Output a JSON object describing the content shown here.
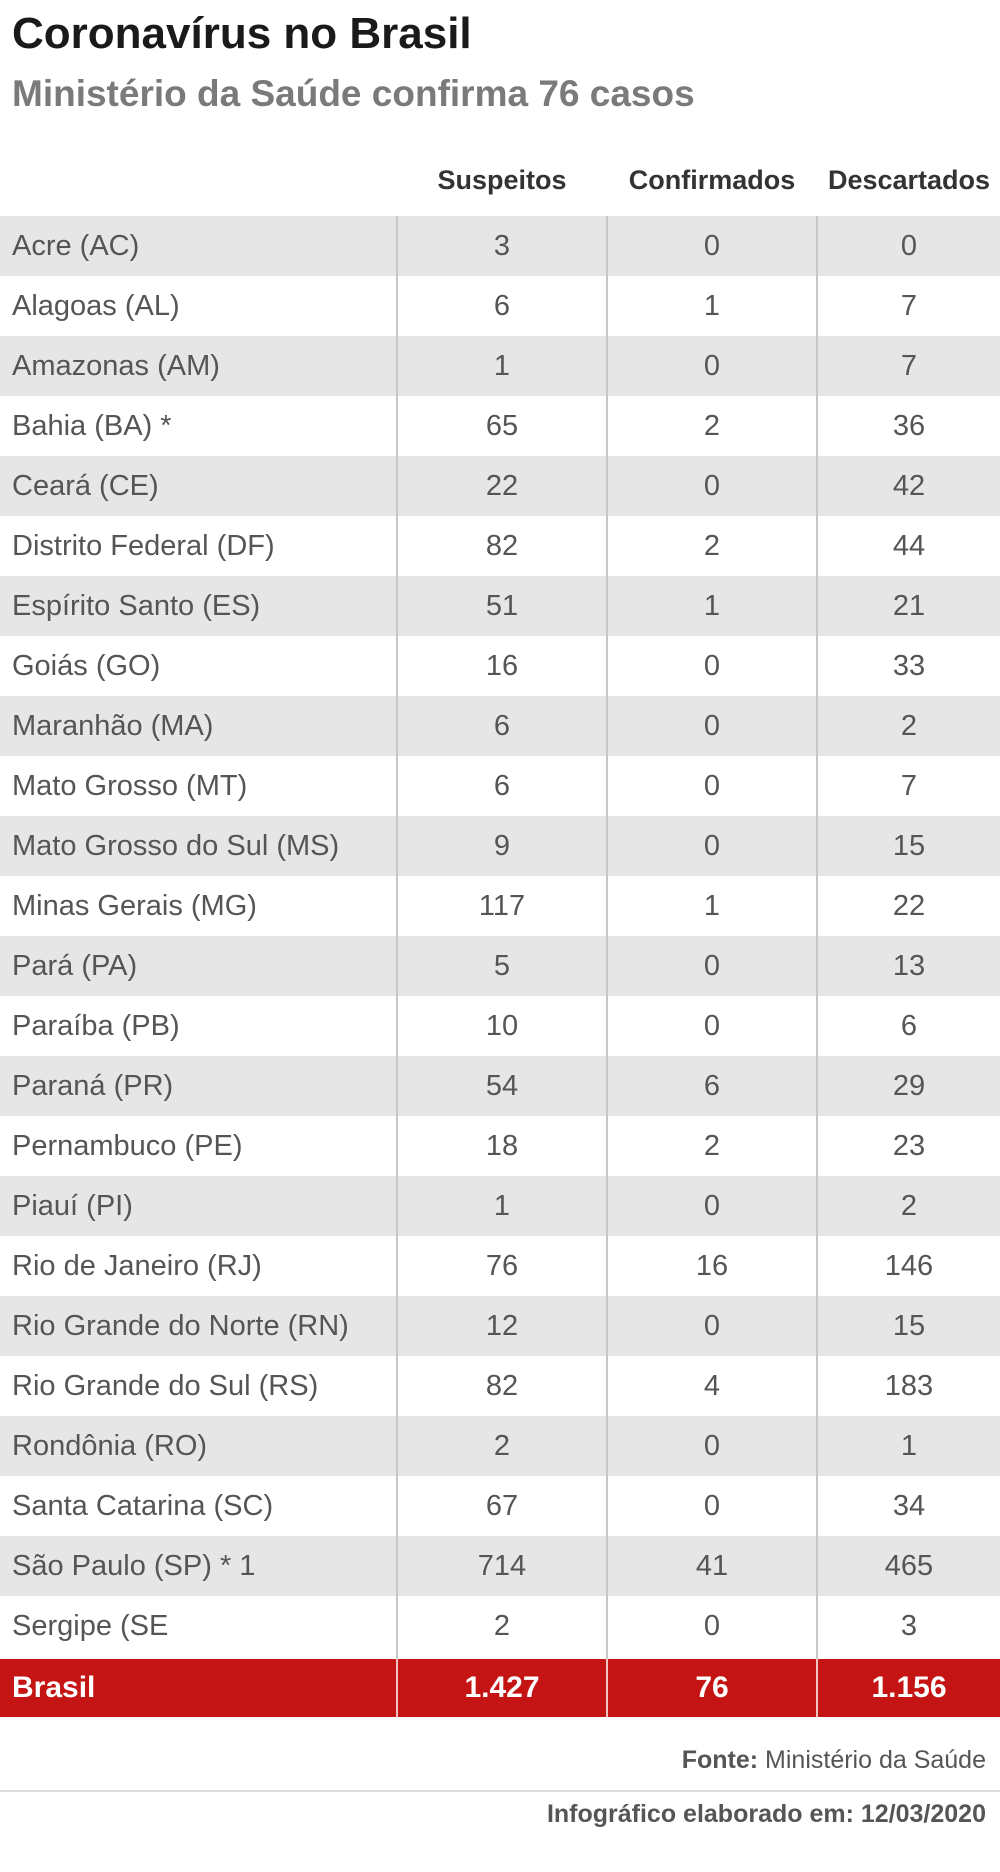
{
  "header": {
    "title": "Coronavírus no Brasil",
    "subtitle": "Ministério da Saúde confirma 76 casos"
  },
  "columns": {
    "suspeitos": "Suspeitos",
    "confirmados": "Confirmados",
    "descartados": "Descartados"
  },
  "rows": [
    {
      "state": "Acre (AC)",
      "suspeitos": "3",
      "confirmados": "0",
      "descartados": "0"
    },
    {
      "state": "Alagoas (AL)",
      "suspeitos": "6",
      "confirmados": "1",
      "descartados": "7"
    },
    {
      "state": "Amazonas (AM)",
      "suspeitos": "1",
      "confirmados": "0",
      "descartados": "7"
    },
    {
      "state": "Bahia (BA) *",
      "suspeitos": "65",
      "confirmados": "2",
      "descartados": "36"
    },
    {
      "state": "Ceará (CE)",
      "suspeitos": "22",
      "confirmados": "0",
      "descartados": "42"
    },
    {
      "state": "Distrito Federal (DF)",
      "suspeitos": "82",
      "confirmados": "2",
      "descartados": "44"
    },
    {
      "state": "Espírito Santo (ES)",
      "suspeitos": "51",
      "confirmados": "1",
      "descartados": "21"
    },
    {
      "state": "Goiás (GO)",
      "suspeitos": "16",
      "confirmados": "0",
      "descartados": "33"
    },
    {
      "state": "Maranhão (MA)",
      "suspeitos": "6",
      "confirmados": "0",
      "descartados": "2"
    },
    {
      "state": "Mato Grosso (MT)",
      "suspeitos": "6",
      "confirmados": "0",
      "descartados": "7"
    },
    {
      "state": "Mato Grosso do Sul (MS)",
      "suspeitos": "9",
      "confirmados": "0",
      "descartados": "15"
    },
    {
      "state": "Minas Gerais (MG)",
      "suspeitos": "117",
      "confirmados": "1",
      "descartados": "22"
    },
    {
      "state": "Pará (PA)",
      "suspeitos": "5",
      "confirmados": "0",
      "descartados": "13"
    },
    {
      "state": "Paraíba (PB)",
      "suspeitos": "10",
      "confirmados": "0",
      "descartados": "6"
    },
    {
      "state": "Paraná (PR)",
      "suspeitos": "54",
      "confirmados": "6",
      "descartados": "29"
    },
    {
      "state": "Pernambuco (PE)",
      "suspeitos": "18",
      "confirmados": "2",
      "descartados": "23"
    },
    {
      "state": "Piauí (PI)",
      "suspeitos": "1",
      "confirmados": "0",
      "descartados": "2"
    },
    {
      "state": "Rio de Janeiro (RJ)",
      "suspeitos": "76",
      "confirmados": "16",
      "descartados": "146"
    },
    {
      "state": "Rio Grande do Norte (RN)",
      "suspeitos": "12",
      "confirmados": "0",
      "descartados": "15"
    },
    {
      "state": "Rio Grande do Sul (RS)",
      "suspeitos": "82",
      "confirmados": "4",
      "descartados": "183"
    },
    {
      "state": "Rondônia (RO)",
      "suspeitos": "2",
      "confirmados": "0",
      "descartados": "1"
    },
    {
      "state": "Santa Catarina (SC)",
      "suspeitos": "67",
      "confirmados": "0",
      "descartados": "34"
    },
    {
      "state": "São Paulo (SP) * 1",
      "suspeitos": "714",
      "confirmados": "41",
      "descartados": "465"
    },
    {
      "state": "Sergipe (SE",
      "suspeitos": "2",
      "confirmados": "0",
      "descartados": "3"
    }
  ],
  "total": {
    "label": "Brasil",
    "suspeitos": "1.427",
    "confirmados": "76",
    "descartados": "1.156"
  },
  "footer": {
    "source_label": "Fonte:",
    "source_value": "Ministério da Saúde",
    "credit": "Infográfico elaborado em: 12/03/2020"
  },
  "colors": {
    "total_row_background": "#c41414",
    "shaded_row_background": "#e6e6e6"
  }
}
